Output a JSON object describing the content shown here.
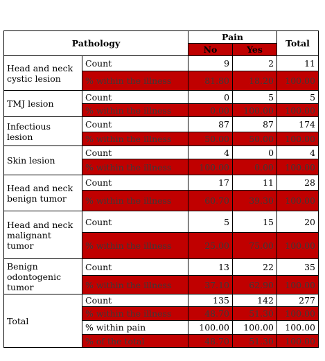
{
  "header": {
    "pathology": "Pathology",
    "pain": "Pain",
    "no": "No",
    "yes": "Yes",
    "total": "Total"
  },
  "groups": [
    {
      "name": "Head and neck cystic lesion",
      "rows": [
        {
          "stat": "Count",
          "no": "9",
          "yes": "2",
          "total": "11",
          "shade": "white",
          "h": 22
        },
        {
          "stat": "% within the illness",
          "no": "81.80",
          "yes": "18.20",
          "total": "100.00",
          "shade": "red",
          "h": 28
        }
      ]
    },
    {
      "name": "TMJ lesion",
      "rows": [
        {
          "stat": "Count",
          "no": "0",
          "yes": "5",
          "total": "5",
          "shade": "white",
          "h": 19
        },
        {
          "stat": "% within the illness",
          "no": "0.00",
          "yes": "100.00",
          "total": "100.00",
          "shade": "red",
          "h": 19
        }
      ]
    },
    {
      "name": "Infectious lesion",
      "rows": [
        {
          "stat": "Count",
          "no": "87",
          "yes": "87",
          "total": "174",
          "shade": "white",
          "h": 22
        },
        {
          "stat": "% within the illness",
          "no": "50.00",
          "yes": "50.00",
          "total": "100.00",
          "shade": "red",
          "h": 20
        }
      ]
    },
    {
      "name": "Skin lesion",
      "rows": [
        {
          "stat": "Count",
          "no": "4",
          "yes": "0",
          "total": "4",
          "shade": "white",
          "h": 19
        },
        {
          "stat": "% within the illness",
          "no": "100.00",
          "yes": "0.00",
          "total": "100.00",
          "shade": "red",
          "h": 23
        }
      ]
    },
    {
      "name": "Head and neck benign tumor",
      "rows": [
        {
          "stat": "Count",
          "no": "17",
          "yes": "11",
          "total": "28",
          "shade": "white",
          "h": 22
        },
        {
          "stat": "% within the illness",
          "no": "60.70",
          "yes": "39.30",
          "total": "100.00",
          "shade": "red",
          "h": 30
        }
      ]
    },
    {
      "name": "Head and neck malignant tumor",
      "rows": [
        {
          "stat": "Count",
          "no": "5",
          "yes": "15",
          "total": "20",
          "shade": "white",
          "h": 31
        },
        {
          "stat": "% within the illness",
          "no": "25.00",
          "yes": "75.00",
          "total": "100.00",
          "shade": "red",
          "h": 38
        }
      ]
    },
    {
      "name": "Benign odontogenic tumor",
      "rows": [
        {
          "stat": "Count",
          "no": "13",
          "yes": "22",
          "total": "35",
          "shade": "white",
          "h": 24
        },
        {
          "stat": "% within the illness",
          "no": "37.10",
          "yes": "62.90",
          "total": "100.00",
          "shade": "red",
          "h": 27
        }
      ]
    },
    {
      "name": "Total",
      "rows": [
        {
          "stat": "Count",
          "no": "135",
          "yes": "142",
          "total": "277",
          "shade": "white",
          "h": 18
        },
        {
          "stat": "% within the illness",
          "no": "48.70",
          "yes": "51.30",
          "total": "100.00",
          "shade": "red",
          "h": 20
        },
        {
          "stat": "% within pain",
          "no": "100.00",
          "yes": "100.00",
          "total": "100.00",
          "shade": "white",
          "h": 20
        },
        {
          "stat": "% of the total",
          "no": "48.70",
          "yes": "51.30",
          "total": "100.00",
          "shade": "red",
          "h": 19
        }
      ]
    }
  ]
}
